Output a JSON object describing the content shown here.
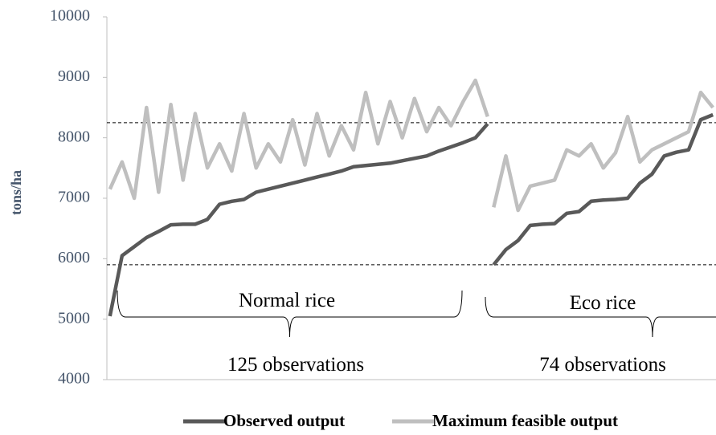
{
  "chart_data": {
    "type": "line",
    "y_label": "tons/ha",
    "x": [
      1,
      5,
      9,
      13,
      17,
      21,
      25,
      29,
      33,
      37,
      41,
      45,
      49,
      53,
      57,
      61,
      65,
      69,
      73,
      77,
      81,
      85,
      89,
      93,
      97,
      101,
      105,
      109,
      113,
      117,
      121,
      125,
      126,
      127,
      131,
      135,
      139,
      143,
      147,
      151,
      155,
      159,
      163,
      167,
      171,
      175,
      179,
      183,
      187,
      191,
      195,
      199
    ],
    "series": [
      {
        "name": "Observed output",
        "color": "#595959",
        "values": [
          5050,
          6050,
          6200,
          6350,
          6450,
          6560,
          6570,
          6570,
          6650,
          6900,
          6950,
          6980,
          7100,
          7150,
          7200,
          7250,
          7300,
          7350,
          7400,
          7450,
          7520,
          7540,
          7560,
          7580,
          7620,
          7660,
          7700,
          7780,
          7850,
          7920,
          8000,
          8230,
          null,
          5900,
          6150,
          6300,
          6550,
          6570,
          6580,
          6750,
          6780,
          6950,
          6970,
          6980,
          7000,
          7250,
          7400,
          7700,
          7760,
          7800,
          8300,
          8380
        ]
      },
      {
        "name": "Maximum feasible output",
        "color": "#bfbfbf",
        "values": [
          7150,
          7600,
          7000,
          8500,
          7100,
          8550,
          7300,
          8400,
          7500,
          7900,
          7450,
          8400,
          7500,
          7900,
          7600,
          8300,
          7550,
          8400,
          7700,
          8200,
          7800,
          8750,
          7900,
          8600,
          8000,
          8650,
          8100,
          8500,
          8200,
          8600,
          8950,
          8350,
          null,
          6850,
          7700,
          6800,
          7200,
          7250,
          7300,
          7800,
          7700,
          7900,
          7500,
          7750,
          8350,
          7600,
          7800,
          7900,
          8000,
          8100,
          8750,
          8500
        ]
      }
    ],
    "xlim": [
      0,
      200
    ],
    "ylim": [
      4000,
      10000
    ],
    "yticks": [
      4000,
      5000,
      6000,
      7000,
      8000,
      9000,
      10000
    ],
    "reference_lines": [
      8250,
      5900
    ],
    "annotations": [
      "Normal rice",
      "125 observations",
      "Eco rice",
      "74 observations"
    ],
    "legend": "bottom"
  }
}
